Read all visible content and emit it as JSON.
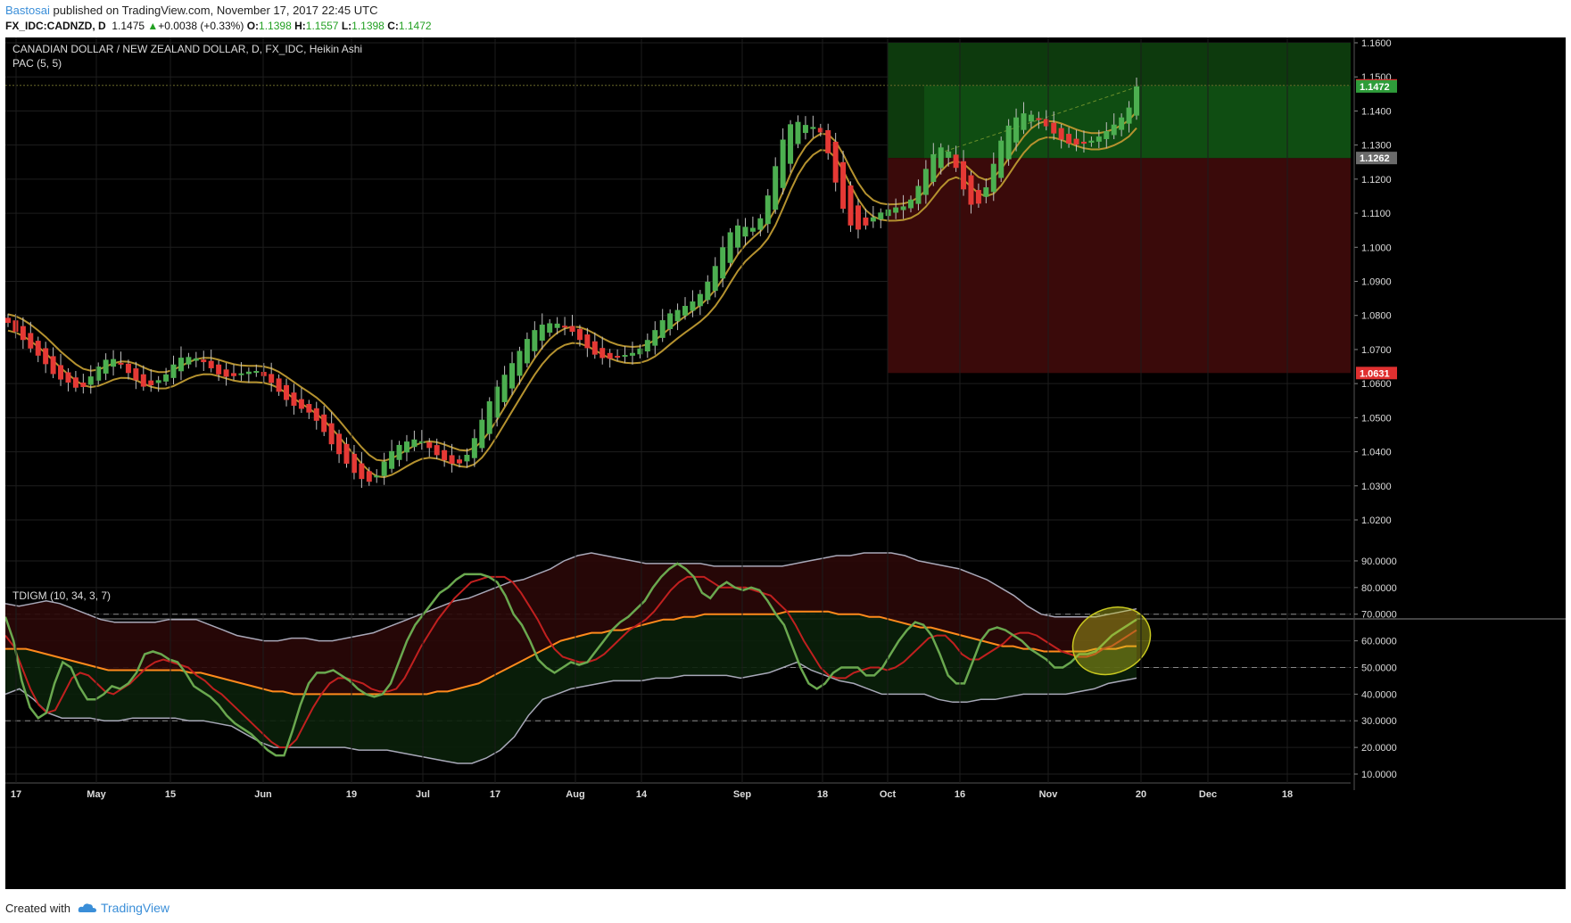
{
  "header": {
    "author": "Bastosai",
    "published_text": "published on TradingView.com, November 17, 2017 22:45 UTC",
    "symbol": "FX_IDC:CADNZD, D",
    "last": "1.1475",
    "change_arrow": "▲",
    "change": "+0.0038 (+0.33%)",
    "o_label": "O:",
    "o_value": "1.1398",
    "h_label": "H:",
    "h_value": "1.1557",
    "l_label": "L:",
    "l_value": "1.1398",
    "c_label": "C:",
    "c_value": "1.1472"
  },
  "footer": {
    "created_with": "Created with",
    "brand": "TradingView",
    "brand_icon": "cloud-logo-icon"
  },
  "colors": {
    "background": "#000000",
    "bull": "#4caf50",
    "bear": "#e53935",
    "pac": "#b5922f",
    "pac_inner": "#8a9a2a",
    "target_zone": "#0d3a0d",
    "stop_zone": "#3a0a0a",
    "rsi_price_line": "#6aa84f",
    "rsi_signal_line": "#c0201f",
    "market_base_line": "#ff8a1c",
    "volatility_band": "#a8a8b8"
  },
  "chart_data": [
    {
      "type": "candlestick",
      "title": "CANADIAN DOLLAR / NEW ZEALAND DOLLAR, D, FX_IDC, Heikin Ashi",
      "indicator": "PAC (5, 5)",
      "ylim": [
        1.02,
        1.16
      ],
      "y_ticks": [
        "1.1600",
        "1.1500",
        "1.1400",
        "1.1300",
        "1.1200",
        "1.1100",
        "1.1000",
        "1.0900",
        "1.0800",
        "1.0700",
        "1.0600",
        "1.0500",
        "1.0400",
        "1.0300",
        "1.0200"
      ],
      "price_labels": [
        {
          "value": 1.1475,
          "text": "1.1475",
          "color": "#e03030"
        },
        {
          "value": 1.1472,
          "text": "1.1472",
          "color": "#2e9c3a"
        },
        {
          "value": 1.1262,
          "text": "1.1262",
          "color": "#6b6b6b"
        },
        {
          "value": 1.0631,
          "text": "1.0631",
          "color": "#e03030"
        }
      ],
      "position_tool": {
        "start": "Oct",
        "entry": 1.1262,
        "target": 1.16,
        "stop": 1.0631
      },
      "series": [
        {
          "name": "Heikin Ashi",
          "values_close": [
            1.0778,
            1.0752,
            1.0728,
            1.0703,
            1.0682,
            1.0657,
            1.0628,
            1.0612,
            1.0603,
            1.0588,
            1.059,
            1.0621,
            1.065,
            1.067,
            1.0672,
            1.0656,
            1.0631,
            1.061,
            1.0591,
            1.0595,
            1.061,
            1.0627,
            1.0656,
            1.0676,
            1.0678,
            1.0674,
            1.0663,
            1.0645,
            1.0627,
            1.062,
            1.0622,
            1.063,
            1.0635,
            1.0637,
            1.0622,
            1.0602,
            1.0576,
            1.0552,
            1.0535,
            1.0526,
            1.0515,
            1.0491,
            1.0458,
            1.0422,
            1.0393,
            1.0365,
            1.0338,
            1.032,
            1.0312,
            1.033,
            1.0371,
            1.0402,
            1.042,
            1.043,
            1.0436,
            1.0431,
            1.0411,
            1.039,
            1.0375,
            1.0365,
            1.0366,
            1.0391,
            1.044,
            1.0494,
            1.0548,
            1.0591,
            1.0626,
            1.066,
            1.0696,
            1.0731,
            1.0757,
            1.0773,
            1.0777,
            1.0776,
            1.0768,
            1.0752,
            1.0728,
            1.0704,
            1.0685,
            1.0675,
            1.0673,
            1.0678,
            1.0684,
            1.069,
            1.0703,
            1.0728,
            1.0757,
            1.0786,
            1.0806,
            1.0816,
            1.0828,
            1.0841,
            1.0863,
            1.0899,
            1.0945,
            1.1,
            1.1044,
            1.1064,
            1.106,
            1.1057,
            1.1085,
            1.1152,
            1.1238,
            1.1316,
            1.1361,
            1.1368,
            1.1359,
            1.1353,
            1.1337,
            1.1276,
            1.119,
            1.1113,
            1.1064,
            1.1052,
            1.1064,
            1.1088,
            1.1102,
            1.1111,
            1.1117,
            1.112,
            1.114,
            1.118,
            1.123,
            1.1273,
            1.1293,
            1.1281,
            1.1233,
            1.117,
            1.1125,
            1.1128,
            1.1176,
            1.1245,
            1.1313,
            1.1357,
            1.1381,
            1.1393,
            1.1389,
            1.1374,
            1.1355,
            1.1334,
            1.1316,
            1.1304,
            1.1301,
            1.1304,
            1.1313,
            1.1325,
            1.1341,
            1.136,
            1.1381,
            1.141,
            1.1472
          ]
        }
      ],
      "pac_upper_note": "PAC band (5,5) upper/lower envelopes follow price"
    },
    {
      "type": "line",
      "title": "TDIGM (10, 34, 3, 7)",
      "ylim": [
        10,
        95
      ],
      "y_ticks": [
        "90.0000",
        "80.0000",
        "70.0000",
        "60.0000",
        "50.0000",
        "40.0000",
        "30.0000",
        "20.0000",
        "10.0000"
      ],
      "levels": [
        70,
        50,
        30
      ],
      "series": [
        {
          "values": [
            69,
            60,
            45,
            35,
            31,
            33,
            44,
            52,
            50,
            43,
            38,
            38,
            40,
            43,
            42,
            44,
            48,
            55,
            56,
            55,
            53,
            52,
            48,
            43,
            41,
            39,
            36,
            32,
            29,
            27,
            25,
            22,
            19,
            17,
            17,
            26,
            36,
            44,
            48,
            48,
            49,
            47,
            45,
            42,
            40,
            39,
            40,
            44,
            52,
            60,
            66,
            70,
            74,
            78,
            80,
            83,
            85,
            85,
            85,
            84,
            82,
            77,
            70,
            66,
            60,
            53,
            50,
            48,
            50,
            52,
            51,
            52,
            56,
            60,
            64,
            67,
            69,
            72,
            75,
            80,
            84,
            87,
            89,
            87,
            84,
            78,
            76,
            80,
            82,
            80,
            79,
            80,
            79,
            75,
            70,
            66,
            58,
            50,
            44,
            42,
            44,
            48,
            50,
            50,
            50,
            47,
            47,
            50,
            55,
            60,
            64,
            67,
            66,
            62,
            55,
            47,
            44,
            44,
            52,
            60,
            64,
            65,
            64,
            62,
            60,
            57,
            55,
            53,
            50,
            50,
            52,
            55,
            55,
            56,
            59,
            62,
            64,
            66,
            68
          ]
        },
        {
          "values": [
            62,
            58,
            50,
            42,
            36,
            33,
            34,
            40,
            46,
            48,
            47,
            44,
            41,
            40,
            42,
            44,
            47,
            50,
            52,
            53,
            52,
            51,
            50,
            47,
            45,
            42,
            40,
            37,
            34,
            31,
            28,
            25,
            22,
            20,
            20,
            23,
            29,
            35,
            40,
            44,
            46,
            46,
            45,
            44,
            42,
            41,
            41,
            42,
            46,
            52,
            58,
            63,
            68,
            72,
            76,
            79,
            82,
            83,
            84,
            84,
            84,
            82,
            78,
            73,
            68,
            62,
            57,
            54,
            53,
            52,
            52,
            53,
            55,
            58,
            61,
            64,
            66,
            68,
            71,
            75,
            79,
            82,
            84,
            84,
            84,
            82,
            80,
            80,
            80,
            80,
            79,
            78,
            77,
            74,
            71,
            66,
            60,
            55,
            50,
            47,
            46,
            46,
            48,
            49,
            50,
            50,
            49,
            50,
            52,
            55,
            58,
            61,
            62,
            62,
            59,
            55,
            53,
            53,
            55,
            57,
            59,
            62,
            63,
            63,
            62,
            60,
            58,
            56,
            55,
            54,
            54,
            55,
            57,
            58,
            60,
            62,
            64
          ]
        },
        {
          "values": [
            57,
            57,
            57,
            56,
            55,
            54,
            53,
            52,
            51,
            50,
            49,
            49,
            49,
            49,
            49,
            49,
            49,
            49,
            48,
            48,
            47,
            46,
            45,
            44,
            43,
            42,
            41,
            41,
            40,
            40,
            40,
            40,
            40,
            40,
            40,
            40,
            40,
            40,
            40,
            40,
            40,
            40,
            41,
            41,
            42,
            43,
            44,
            46,
            48,
            50,
            52,
            54,
            56,
            58,
            60,
            61,
            62,
            63,
            63,
            64,
            64,
            65,
            66,
            67,
            68,
            68,
            69,
            69,
            70,
            70,
            70,
            70,
            70,
            70,
            70,
            70,
            71,
            71,
            71,
            71,
            71,
            70,
            70,
            70,
            69,
            69,
            68,
            67,
            66,
            65,
            65,
            64,
            63,
            62,
            61,
            60,
            59,
            58,
            58,
            57,
            57,
            56,
            56,
            56,
            56,
            56,
            57,
            57,
            57,
            58,
            58
          ]
        },
        {
          "values": [
            74,
            73,
            74,
            75,
            74,
            72,
            70,
            68,
            67,
            67,
            67,
            67,
            68,
            68,
            68,
            66,
            64,
            62,
            61,
            60,
            60,
            61,
            61,
            60,
            60,
            61,
            62,
            63,
            65,
            67,
            69,
            71,
            73,
            75,
            76,
            78,
            80,
            82,
            83,
            85,
            87,
            90,
            92,
            93,
            92,
            91,
            90,
            89,
            89,
            89,
            89,
            89,
            88,
            88,
            88,
            88,
            88,
            88,
            89,
            90,
            91,
            92,
            92,
            93,
            93,
            93,
            92,
            90,
            89,
            88,
            87,
            85,
            83,
            80,
            77,
            73,
            70,
            69,
            69,
            69,
            69,
            70,
            71,
            72
          ]
        },
        {
          "values": [
            40,
            42,
            38,
            33,
            31,
            31,
            31,
            30,
            30,
            31,
            31,
            31,
            31,
            30,
            30,
            29,
            28,
            25,
            22,
            20,
            20,
            20,
            20,
            20,
            20,
            19,
            19,
            19,
            18,
            17,
            16,
            15,
            14,
            14,
            16,
            19,
            24,
            32,
            38,
            40,
            42,
            43,
            44,
            45,
            45,
            45,
            46,
            46,
            47,
            47,
            47,
            47,
            46,
            47,
            48,
            50,
            52,
            49,
            47,
            45,
            44,
            42,
            40,
            40,
            40,
            40,
            38,
            37,
            37,
            38,
            38,
            39,
            40,
            40,
            40,
            40,
            41,
            42,
            44,
            45,
            46
          ]
        }
      ]
    }
  ],
  "x_labels": [
    "17",
    "May",
    "15",
    "Jun",
    "19",
    "Jul",
    "17",
    "Aug",
    "14",
    "Sep",
    "18",
    "Oct",
    "16",
    "Nov",
    "20",
    "Dec",
    "18"
  ],
  "annotation": {
    "shape": "ellipse",
    "color": "#c8c820"
  }
}
